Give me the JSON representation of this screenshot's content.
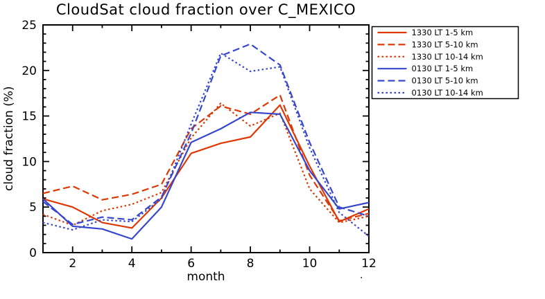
{
  "title": "CloudSat cloud fraction over C_MEXICO",
  "corner_mark": ".",
  "colors": {
    "day_red": "#dd3703",
    "night_blue": "#3747cc",
    "axis": "#000000",
    "background": "#ffffff"
  },
  "chart_data": {
    "type": "line",
    "title": "CloudSat cloud fraction over C_MEXICO",
    "xlabel": "month",
    "ylabel": "cloud fraction (%)",
    "xlim": [
      1,
      12
    ],
    "ylim": [
      0,
      25
    ],
    "xticks": [
      2,
      4,
      6,
      8,
      10,
      12
    ],
    "yticks": [
      0,
      5,
      10,
      15,
      20,
      25
    ],
    "x_minor_step": 1,
    "y_minor_step": 1,
    "grid": false,
    "legend_position": "top-right",
    "x": [
      1,
      2,
      3,
      4,
      5,
      6,
      7,
      8,
      9,
      10,
      11,
      12
    ],
    "series": [
      {
        "name": "1330 LT 1-5 km",
        "color": "#dd3703",
        "style": "solid",
        "values": [
          5.9,
          5.0,
          3.3,
          2.7,
          6.0,
          10.9,
          12.0,
          12.7,
          16.2,
          9.5,
          3.4,
          4.8
        ]
      },
      {
        "name": "1330 LT 5-10 km",
        "color": "#dd3703",
        "style": "dashed",
        "values": [
          6.5,
          7.3,
          5.8,
          6.4,
          7.5,
          13.6,
          16.1,
          15.2,
          17.3,
          8.5,
          3.5,
          4.3
        ]
      },
      {
        "name": "1330 LT 10-14 km",
        "color": "#dd3703",
        "style": "dotted",
        "values": [
          4.2,
          3.0,
          4.6,
          5.3,
          6.6,
          12.6,
          16.4,
          13.9,
          15.3,
          7.0,
          3.3,
          4.0
        ]
      },
      {
        "name": "0130 LT 1-5 km",
        "color": "#3747cc",
        "style": "solid",
        "values": [
          5.9,
          2.9,
          2.6,
          1.5,
          5.0,
          12.1,
          13.6,
          15.4,
          15.2,
          9.0,
          4.8,
          5.5
        ]
      },
      {
        "name": "0130 LT 5-10 km",
        "color": "#3747cc",
        "style": "dashed",
        "values": [
          5.6,
          3.1,
          3.9,
          3.6,
          6.1,
          13.1,
          21.6,
          22.9,
          20.6,
          12.1,
          5.0,
          4.0
        ]
      },
      {
        "name": "0130 LT 10-14 km",
        "color": "#3747cc",
        "style": "dotted",
        "values": [
          3.3,
          2.5,
          3.6,
          3.4,
          5.9,
          14.1,
          21.9,
          19.9,
          20.4,
          11.5,
          4.4,
          1.8
        ]
      }
    ]
  }
}
